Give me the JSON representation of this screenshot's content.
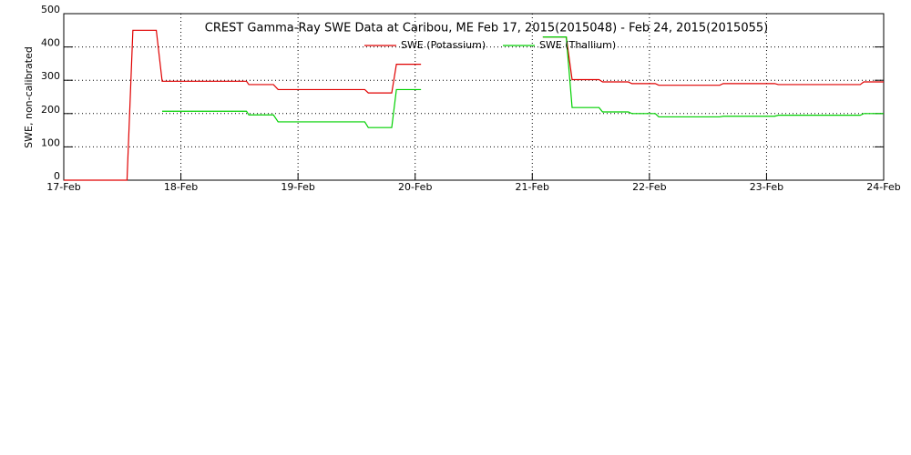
{
  "chart_data": {
    "type": "line",
    "title": "CREST Gamma-Ray SWE Data at Caribou, ME   Feb 17, 2015(2015048) - Feb 24, 2015(2015055)",
    "y_label": "SWE, non-calibrated",
    "x": [
      17.0,
      17.54,
      17.59,
      17.79,
      17.84,
      18.56,
      18.58,
      18.79,
      18.83,
      19.57,
      19.6,
      19.8,
      19.84,
      20.05,
      20.06,
      21.09,
      21.29,
      21.34,
      21.57,
      21.6,
      21.82,
      21.85,
      22.05,
      22.08,
      22.6,
      22.63,
      23.07,
      23.1,
      23.8,
      23.83,
      24.0
    ],
    "series": [
      {
        "name": "SWE (Potassium)",
        "color": "#e00000",
        "values": [
          0,
          0,
          450,
          450,
          297,
          297,
          287,
          287,
          272,
          272,
          262,
          262,
          348,
          348,
          null,
          430,
          430,
          302,
          302,
          295,
          295,
          290,
          290,
          285,
          285,
          290,
          290,
          287,
          287,
          295,
          295
        ]
      },
      {
        "name": "SWE (Thallium)",
        "color": "#00d000",
        "values": [
          null,
          null,
          null,
          null,
          207,
          207,
          196,
          196,
          175,
          175,
          158,
          158,
          272,
          272,
          null,
          430,
          430,
          218,
          218,
          205,
          205,
          200,
          200,
          190,
          190,
          192,
          192,
          195,
          195,
          200,
          200
        ]
      }
    ],
    "xlim": [
      17,
      24
    ],
    "xticks": [
      {
        "value": 17,
        "label": "17-Feb"
      },
      {
        "value": 18,
        "label": "18-Feb"
      },
      {
        "value": 19,
        "label": "19-Feb"
      },
      {
        "value": 20,
        "label": "20-Feb"
      },
      {
        "value": 21,
        "label": "21-Feb"
      },
      {
        "value": 22,
        "label": "22-Feb"
      },
      {
        "value": 23,
        "label": "23-Feb"
      },
      {
        "value": 24,
        "label": "24-Feb"
      }
    ],
    "ylim": [
      0,
      500
    ],
    "yticks": [
      0,
      100,
      200,
      300,
      400,
      500
    ],
    "grid": true
  }
}
